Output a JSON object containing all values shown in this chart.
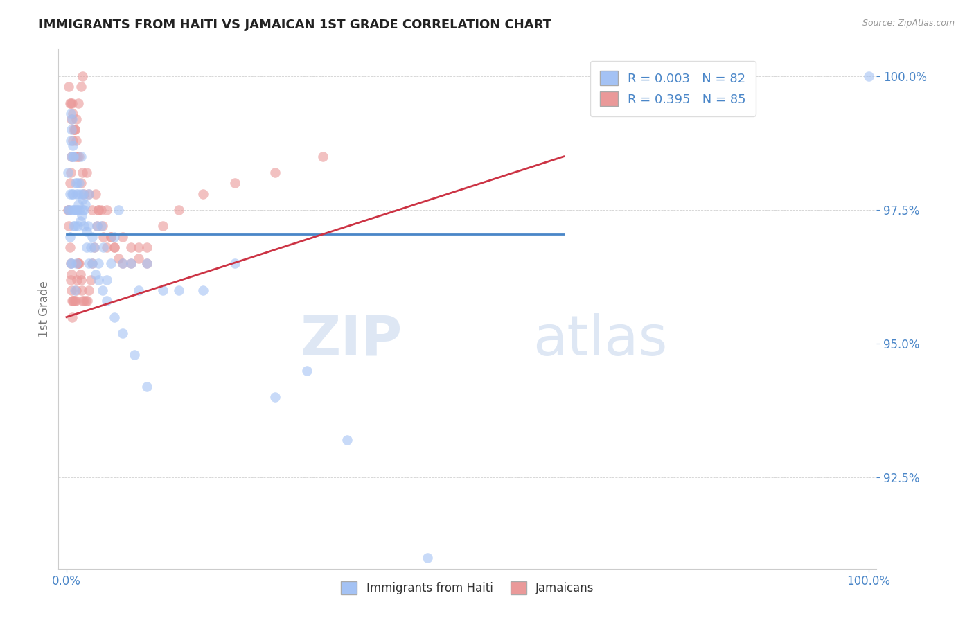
{
  "title": "IMMIGRANTS FROM HAITI VS JAMAICAN 1ST GRADE CORRELATION CHART",
  "source_text": "Source: ZipAtlas.com",
  "ylabel": "1st Grade",
  "xlim": [
    -0.01,
    1.01
  ],
  "ylim": [
    0.908,
    1.005
  ],
  "ytick_positions": [
    0.925,
    0.95,
    0.975,
    1.0
  ],
  "ytick_labels": [
    "92.5%",
    "95.0%",
    "97.5%",
    "100.0%"
  ],
  "xtick_positions": [
    0.0,
    1.0
  ],
  "xtick_labels": [
    "0.0%",
    "100.0%"
  ],
  "legend_r1": "R = 0.003",
  "legend_n1": "N = 82",
  "legend_r2": "R = 0.395",
  "legend_n2": "N = 85",
  "legend_label1": "Immigrants from Haiti",
  "legend_label2": "Jamaicans",
  "color_blue": "#a4c2f4",
  "color_pink": "#ea9999",
  "trendline_blue_color": "#4a86c8",
  "trendline_pink_color": "#cc3344",
  "background_color": "#ffffff",
  "watermark_text": "ZIPatlas",
  "haiti_x": [
    0.002,
    0.003,
    0.004,
    0.005,
    0.005,
    0.006,
    0.006,
    0.007,
    0.007,
    0.008,
    0.008,
    0.009,
    0.009,
    0.01,
    0.01,
    0.011,
    0.012,
    0.012,
    0.013,
    0.014,
    0.015,
    0.015,
    0.016,
    0.017,
    0.018,
    0.019,
    0.02,
    0.021,
    0.022,
    0.023,
    0.025,
    0.027,
    0.028,
    0.03,
    0.032,
    0.035,
    0.038,
    0.04,
    0.043,
    0.046,
    0.05,
    0.055,
    0.06,
    0.065,
    0.07,
    0.08,
    0.09,
    0.1,
    0.12,
    0.14,
    0.17,
    0.21,
    0.26,
    0.3,
    0.35,
    0.45,
    0.003,
    0.004,
    0.005,
    0.006,
    0.007,
    0.008,
    0.009,
    0.01,
    0.012,
    0.014,
    0.016,
    0.018,
    0.02,
    0.022,
    0.025,
    0.028,
    0.032,
    0.036,
    0.04,
    0.045,
    0.05,
    0.06,
    0.07,
    0.085,
    0.1,
    1.0
  ],
  "haiti_y": [
    0.982,
    0.975,
    0.978,
    0.988,
    0.993,
    0.985,
    0.99,
    0.992,
    0.978,
    0.985,
    0.987,
    0.985,
    0.975,
    0.975,
    0.972,
    0.98,
    0.978,
    0.975,
    0.98,
    0.975,
    0.976,
    0.978,
    0.975,
    0.973,
    0.985,
    0.974,
    0.977,
    0.978,
    0.975,
    0.976,
    0.971,
    0.972,
    0.978,
    0.968,
    0.97,
    0.968,
    0.972,
    0.965,
    0.972,
    0.968,
    0.962,
    0.965,
    0.97,
    0.975,
    0.965,
    0.965,
    0.96,
    0.965,
    0.96,
    0.96,
    0.96,
    0.965,
    0.94,
    0.945,
    0.932,
    0.91,
    0.975,
    0.97,
    0.965,
    0.965,
    0.975,
    0.978,
    0.972,
    0.96,
    0.965,
    0.972,
    0.98,
    0.978,
    0.975,
    0.972,
    0.968,
    0.965,
    0.965,
    0.963,
    0.962,
    0.96,
    0.958,
    0.955,
    0.952,
    0.948,
    0.942,
    1.0
  ],
  "jamaican_x": [
    0.002,
    0.003,
    0.004,
    0.005,
    0.005,
    0.006,
    0.006,
    0.007,
    0.007,
    0.008,
    0.009,
    0.01,
    0.011,
    0.012,
    0.013,
    0.014,
    0.015,
    0.016,
    0.017,
    0.018,
    0.019,
    0.02,
    0.022,
    0.024,
    0.026,
    0.028,
    0.03,
    0.032,
    0.035,
    0.038,
    0.04,
    0.043,
    0.046,
    0.05,
    0.055,
    0.06,
    0.065,
    0.07,
    0.08,
    0.09,
    0.1,
    0.003,
    0.004,
    0.005,
    0.006,
    0.007,
    0.008,
    0.009,
    0.01,
    0.011,
    0.012,
    0.014,
    0.016,
    0.018,
    0.02,
    0.022,
    0.025,
    0.028,
    0.032,
    0.036,
    0.04,
    0.045,
    0.05,
    0.055,
    0.06,
    0.07,
    0.08,
    0.09,
    0.1,
    0.12,
    0.14,
    0.17,
    0.21,
    0.26,
    0.32,
    0.003,
    0.004,
    0.005,
    0.006,
    0.008,
    0.01,
    0.012,
    0.015,
    0.018,
    0.02
  ],
  "jamaican_y": [
    0.975,
    0.972,
    0.968,
    0.965,
    0.962,
    0.96,
    0.963,
    0.958,
    0.955,
    0.958,
    0.958,
    0.958,
    0.958,
    0.96,
    0.962,
    0.965,
    0.965,
    0.965,
    0.963,
    0.962,
    0.96,
    0.958,
    0.958,
    0.958,
    0.958,
    0.96,
    0.962,
    0.965,
    0.968,
    0.972,
    0.975,
    0.975,
    0.97,
    0.968,
    0.97,
    0.968,
    0.966,
    0.965,
    0.965,
    0.968,
    0.968,
    0.998,
    0.995,
    0.995,
    0.992,
    0.995,
    0.993,
    0.99,
    0.99,
    0.985,
    0.988,
    0.985,
    0.985,
    0.98,
    0.982,
    0.978,
    0.982,
    0.978,
    0.975,
    0.978,
    0.975,
    0.972,
    0.975,
    0.97,
    0.968,
    0.97,
    0.968,
    0.966,
    0.965,
    0.972,
    0.975,
    0.978,
    0.98,
    0.982,
    0.985,
    0.975,
    0.98,
    0.982,
    0.985,
    0.988,
    0.99,
    0.992,
    0.995,
    0.998,
    1.0
  ]
}
